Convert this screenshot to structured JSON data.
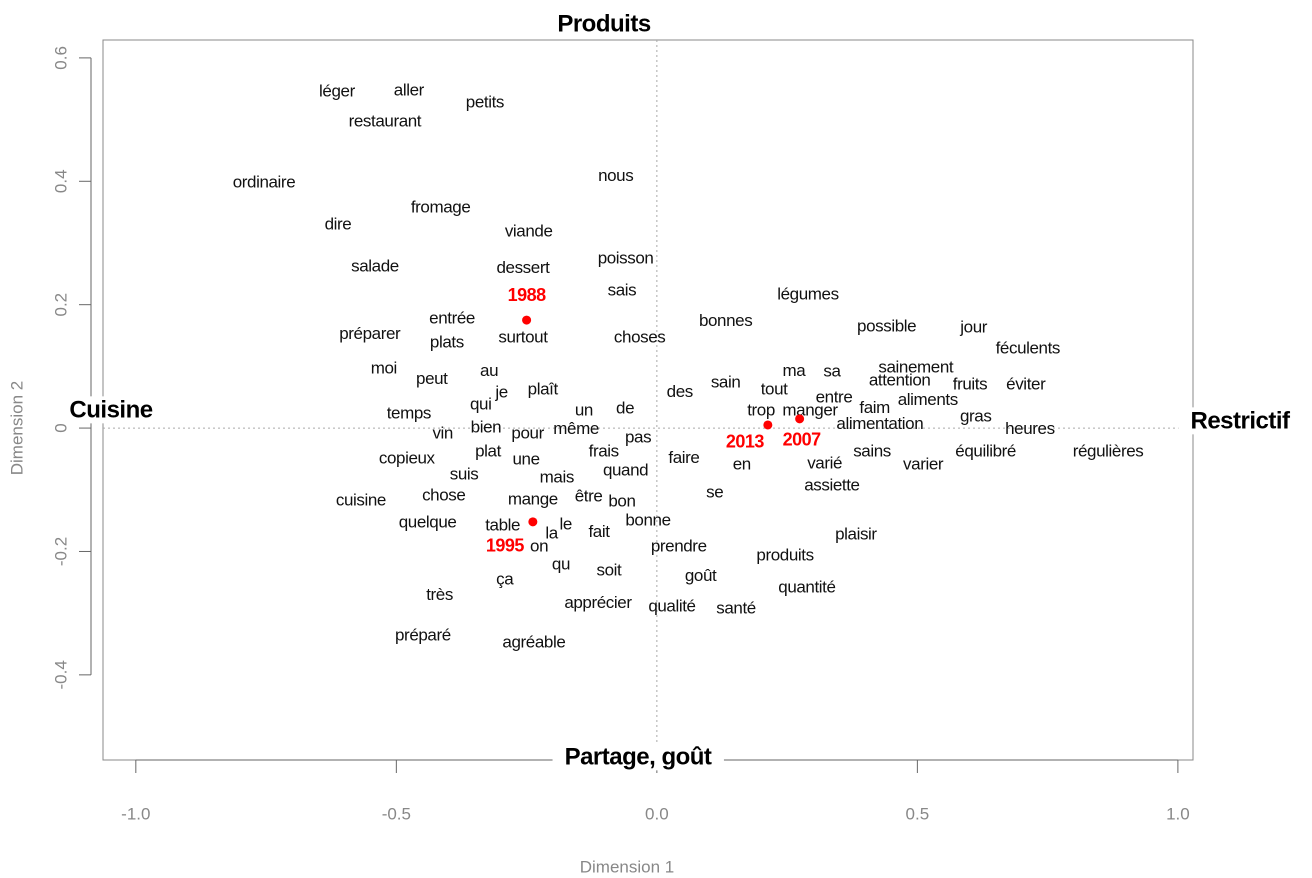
{
  "chart_data": {
    "type": "scatter",
    "x_label": "Dimension 1",
    "y_label": "Dimension 2",
    "annotations": {
      "top": "Produits",
      "bottom": "Partage, goût",
      "left": "Cuisine",
      "right": "Restrictif"
    },
    "xlim": [
      -1.063,
      1.029
    ],
    "ylim": [
      -0.538,
      0.629
    ],
    "xticks": [
      {
        "value": -1.0,
        "label": "-1.0"
      },
      -0.5,
      {
        "value": 0.0,
        "label": "0.0"
      },
      0.5,
      {
        "value": 1.0,
        "label": "1.0"
      }
    ],
    "yticks": [
      -0.4,
      -0.2,
      0,
      0.2,
      0.4,
      0.6
    ],
    "words": {
      "color": "#111111",
      "labels": [
        "léger",
        "aller",
        "petits",
        "restaurant",
        "ordinaire",
        "nous",
        "fromage",
        "dire",
        "viande",
        "salade",
        "dessert",
        "poisson",
        "sais",
        "légumes",
        "bonnes",
        "possible",
        "jour",
        "préparer",
        "entrée",
        "plats",
        "surtout",
        "choses",
        "féculents",
        "moi",
        "au",
        "peut",
        "ma",
        "sa",
        "sainement",
        "sain",
        "tout",
        "attention",
        "fruits",
        "éviter",
        "je",
        "plaît",
        "des",
        "entre",
        "aliments",
        "qui",
        "faim",
        "un",
        "de",
        "temps",
        "trop",
        "manger",
        "gras",
        "alimentation",
        "bien",
        "heures",
        "vin",
        "pour",
        "même",
        "pas",
        "frais",
        "plat",
        "copieux",
        "une",
        "faire",
        "sains",
        "équilibré",
        "régulières",
        "en",
        "varié",
        "varier",
        "quand",
        "suis",
        "mais",
        "assiette",
        "chose",
        "cuisine",
        "mange",
        "être",
        "bon",
        "se",
        "quelque",
        "table",
        "le",
        "la",
        "fait",
        "bonne",
        "on",
        "plaisir",
        "prendre",
        "produits",
        "qu",
        "soit",
        "ça",
        "goût",
        "quantité",
        "très",
        "apprécier",
        "qualité",
        "santé",
        "préparé",
        "agréable"
      ],
      "x": [
        -0.614,
        -0.476,
        -0.33,
        -0.522,
        -0.754,
        -0.079,
        -0.415,
        -0.612,
        -0.246,
        -0.541,
        -0.257,
        -0.06,
        -0.067,
        0.29,
        0.132,
        0.441,
        0.608,
        -0.551,
        -0.393,
        -0.403,
        -0.257,
        -0.033,
        0.712,
        -0.524,
        -0.322,
        -0.432,
        0.263,
        0.336,
        0.497,
        0.132,
        0.225,
        0.466,
        0.601,
        0.708,
        -0.298,
        -0.219,
        0.044,
        0.34,
        0.52,
        -0.338,
        0.418,
        -0.14,
        -0.061,
        -0.476,
        0.2,
        0.294,
        0.612,
        0.428,
        -0.328,
        0.716,
        -0.411,
        -0.248,
        -0.155,
        -0.036,
        -0.102,
        -0.324,
        -0.48,
        -0.251,
        0.052,
        0.413,
        0.631,
        0.866,
        0.163,
        0.322,
        0.511,
        -0.06,
        -0.37,
        -0.192,
        0.336,
        -0.409,
        -0.568,
        -0.238,
        -0.131,
        -0.067,
        0.111,
        -0.44,
        -0.296,
        -0.175,
        -0.202,
        -0.111,
        -0.017,
        -0.226,
        0.382,
        0.042,
        0.246,
        -0.184,
        -0.092,
        -0.292,
        0.084,
        0.288,
        -0.417,
        -0.113,
        0.029,
        0.152,
        -0.449,
        -0.236
      ],
      "y": [
        0.545,
        0.546,
        0.527,
        0.496,
        0.397,
        0.408,
        0.357,
        0.329,
        0.318,
        0.261,
        0.259,
        0.274,
        0.222,
        0.216,
        0.173,
        0.164,
        0.162,
        0.152,
        0.177,
        0.138,
        0.146,
        0.146,
        0.128,
        0.096,
        0.092,
        0.079,
        0.092,
        0.091,
        0.097,
        0.073,
        0.062,
        0.076,
        0.07,
        0.07,
        0.057,
        0.062,
        0.058,
        0.049,
        0.045,
        0.037,
        0.032,
        0.028,
        0.031,
        0.023,
        0.028,
        0.028,
        0.018,
        0.006,
        0.0,
        -0.002,
        -0.01,
        -0.01,
        -0.002,
        -0.016,
        -0.039,
        -0.039,
        -0.05,
        -0.052,
        -0.049,
        -0.039,
        -0.039,
        -0.039,
        -0.06,
        -0.058,
        -0.06,
        -0.07,
        -0.076,
        -0.081,
        -0.094,
        -0.11,
        -0.118,
        -0.117,
        -0.112,
        -0.12,
        -0.105,
        -0.154,
        -0.159,
        -0.157,
        -0.172,
        -0.169,
        -0.151,
        -0.193,
        -0.173,
        -0.193,
        -0.207,
        -0.222,
        -0.232,
        -0.246,
        -0.241,
        -0.259,
        -0.271,
        -0.284,
        -0.29,
        -0.293,
        -0.337,
        -0.348
      ]
    },
    "points": {
      "color": "#ff0000",
      "labels": [
        "1988",
        "1995",
        "2013",
        "2007"
      ],
      "x": [
        -0.25,
        -0.238,
        0.213,
        0.274
      ],
      "y": [
        0.175,
        -0.152,
        0.005,
        0.015
      ]
    }
  }
}
